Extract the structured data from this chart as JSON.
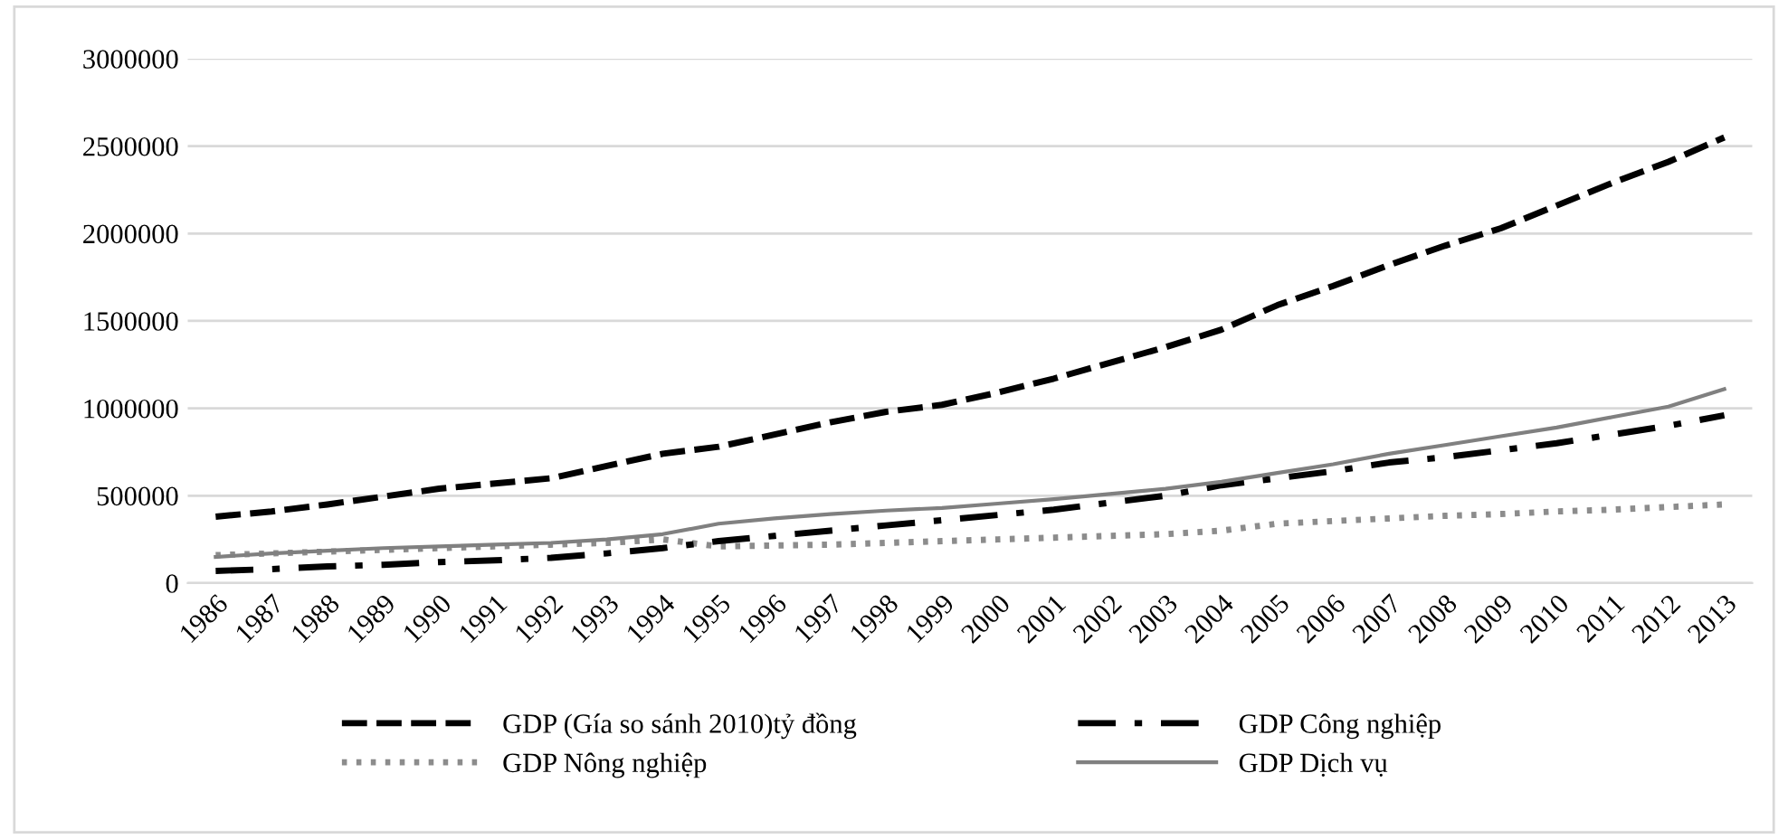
{
  "chart_data": {
    "type": "line",
    "categories": [
      "1986",
      "1987",
      "1988",
      "1989",
      "1990",
      "1991",
      "1992",
      "1993",
      "1994",
      "1995",
      "1996",
      "1997",
      "1998",
      "1999",
      "2000",
      "2001",
      "2002",
      "2003",
      "2004",
      "2005",
      "2006",
      "2007",
      "2008",
      "2009",
      "2010",
      "2011",
      "2012",
      "2013"
    ],
    "series": [
      {
        "name": "GDP (Gía so sánh 2010)tỷ đồng",
        "color": "#000000",
        "line_style": "dashed",
        "values": [
          380000,
          410000,
          450000,
          495000,
          540000,
          570000,
          600000,
          670000,
          740000,
          780000,
          850000,
          920000,
          980000,
          1020000,
          1090000,
          1170000,
          1260000,
          1350000,
          1450000,
          1590000,
          1700000,
          1820000,
          1930000,
          2030000,
          2160000,
          2290000,
          2410000,
          2550000
        ]
      },
      {
        "name": "GDP Nông nghiệp",
        "color": "#8c8c8c",
        "line_style": "dotted",
        "values": [
          160000,
          170000,
          180000,
          190000,
          200000,
          210000,
          220000,
          230000,
          250000,
          210000,
          215000,
          220000,
          230000,
          240000,
          250000,
          260000,
          270000,
          280000,
          300000,
          340000,
          355000,
          370000,
          385000,
          395000,
          410000,
          420000,
          435000,
          450000
        ]
      },
      {
        "name": "GDP Công nghiệp",
        "color": "#000000",
        "line_style": "dashdot",
        "values": [
          70000,
          80000,
          95000,
          105000,
          120000,
          130000,
          145000,
          170000,
          200000,
          240000,
          270000,
          300000,
          330000,
          360000,
          390000,
          420000,
          460000,
          500000,
          560000,
          600000,
          640000,
          690000,
          720000,
          760000,
          800000,
          850000,
          900000,
          960000
        ]
      },
      {
        "name": "GDP Dịch vụ",
        "color": "#808080",
        "line_style": "solid",
        "values": [
          150000,
          170000,
          185000,
          200000,
          210000,
          220000,
          230000,
          250000,
          280000,
          340000,
          370000,
          395000,
          415000,
          430000,
          455000,
          480000,
          510000,
          540000,
          580000,
          630000,
          680000,
          740000,
          790000,
          840000,
          890000,
          950000,
          1010000,
          1110000
        ]
      }
    ],
    "ylim": [
      0,
      3000000
    ],
    "yticks": [
      0,
      500000,
      1000000,
      1500000,
      2000000,
      2500000,
      3000000
    ],
    "grid": "y",
    "legend": "bottom",
    "marker": "none"
  }
}
